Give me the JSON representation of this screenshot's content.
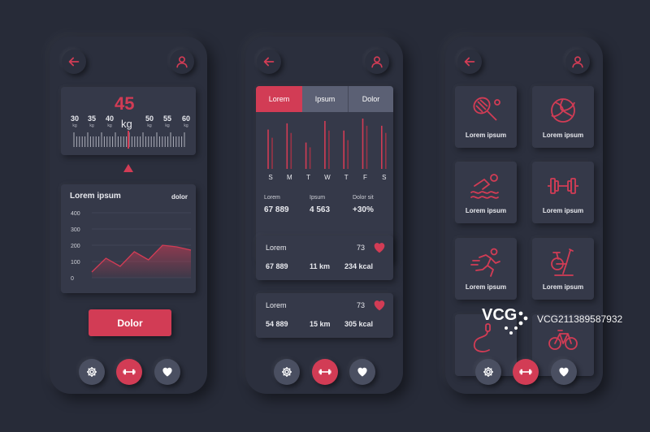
{
  "colors": {
    "accent": "#d23c55",
    "background": "#272b38",
    "card": "#353949",
    "text": "#e8e9ee"
  },
  "screen1": {
    "weight_value": "45",
    "weight_unit": "kg",
    "scale_ticks": [
      {
        "value": "30",
        "unit": "kg"
      },
      {
        "value": "35",
        "unit": "kg"
      },
      {
        "value": "40",
        "unit": "kg"
      },
      {
        "value": "50",
        "unit": "kg"
      },
      {
        "value": "55",
        "unit": "kg"
      },
      {
        "value": "60",
        "unit": "kg"
      }
    ],
    "chart_title": "Lorem ipsum",
    "chart_label": "dolor",
    "chart_y_ticks": [
      "400",
      "300",
      "200",
      "100",
      "0"
    ],
    "button_label": "Dolor"
  },
  "screen2": {
    "tabs": [
      "Lorem",
      "Ipsum",
      "Dolor"
    ],
    "days": [
      "S",
      "M",
      "T",
      "W",
      "T",
      "F",
      "S"
    ],
    "stats": [
      {
        "label": "Lorem",
        "value": "67 889"
      },
      {
        "label": "Ipsum",
        "value": "4 563"
      },
      {
        "label": "Dolor sit",
        "value": "+30%"
      }
    ],
    "workouts": [
      {
        "title": "Lorem",
        "heart_rate": "73",
        "steps": "67 889",
        "distance": "11 km",
        "calories": "234 kcal"
      },
      {
        "title": "Lorem",
        "heart_rate": "73",
        "steps": "54 889",
        "distance": "15 km",
        "calories": "305 kcal"
      }
    ]
  },
  "screen3": {
    "tiles": [
      {
        "icon": "tennis-racket-icon",
        "label": "Lorem ipsum"
      },
      {
        "icon": "volleyball-icon",
        "label": "Lorem ipsum"
      },
      {
        "icon": "swimming-icon",
        "label": "Lorem ipsum"
      },
      {
        "icon": "dumbbell-icon",
        "label": "Lorem ipsum"
      },
      {
        "icon": "running-icon",
        "label": "Lorem ipsum"
      },
      {
        "icon": "exercise-bike-icon",
        "label": "Lorem ipsum"
      },
      {
        "icon": "jump-rope-icon",
        "label": ""
      },
      {
        "icon": "bicycle-icon",
        "label": ""
      }
    ]
  },
  "watermark": {
    "text": "VCG211389587932",
    "logo": "VCG"
  },
  "chart_data": {
    "type": "area",
    "title": "Lorem ipsum",
    "series": [
      {
        "name": "dolor",
        "values": [
          35,
          120,
          70,
          160,
          110,
          200,
          190,
          170
        ]
      }
    ],
    "ylim": [
      0,
      400
    ],
    "y_ticks": [
      400,
      300,
      200,
      100,
      0
    ],
    "grid": true
  },
  "bar_chart_data": {
    "type": "bar",
    "categories": [
      "S",
      "M",
      "T",
      "W",
      "T",
      "F",
      "S"
    ],
    "series": [
      {
        "values": [
          82,
          95,
          55,
          100,
          80,
          105,
          90
        ]
      },
      {
        "values": [
          65,
          75,
          45,
          80,
          60,
          90,
          75
        ]
      }
    ]
  }
}
